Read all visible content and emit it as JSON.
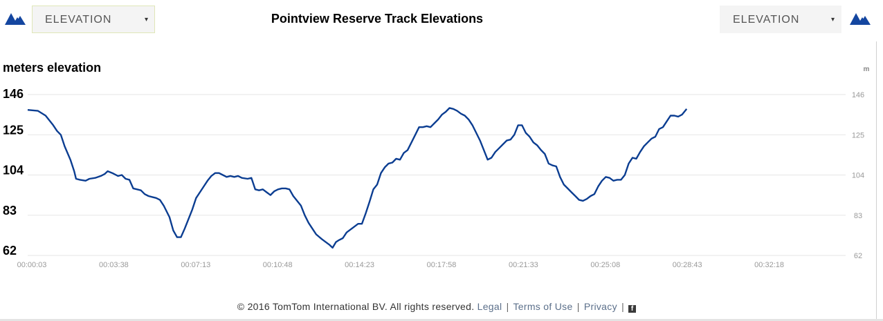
{
  "header": {
    "left_select": {
      "value": "ELEVATION",
      "caret": "▾"
    },
    "right_select": {
      "value": "ELEVATION",
      "caret": "▾"
    },
    "left_icon": "mountain-icon",
    "right_icon": "mountain-icon",
    "icon_color": "#1446a0"
  },
  "footer": {
    "copyright": "© 2016 TomTom International BV. All rights reserved.",
    "links": [
      "Legal",
      "Terms of Use",
      "Privacy"
    ],
    "separator": "|",
    "social_icon": "facebook-icon",
    "social_glyph": "f"
  },
  "chart_data": {
    "type": "line",
    "title": "Pointview Reserve Track Elevations",
    "ylabel": "meters elevation",
    "y2label": "m",
    "ylim": [
      62,
      146
    ],
    "y_ticks": [
      "146",
      "125",
      "104",
      "83",
      "62"
    ],
    "y2_ticks": [
      "146",
      "125",
      "104",
      "83",
      "62"
    ],
    "x_ticks": [
      "00:00:03",
      "00:03:38",
      "00:07:13",
      "00:10:48",
      "00:14:23",
      "00:17:58",
      "00:21:33",
      "00:25:08",
      "00:28:43",
      "00:32:18"
    ],
    "x_range_seconds": [
      3,
      2130
    ],
    "grid": true,
    "line_color": "#0b3d91",
    "series": [
      {
        "values": [
          [
            3,
            138
          ],
          [
            30,
            137.5
          ],
          [
            50,
            135
          ],
          [
            70,
            130
          ],
          [
            80,
            127
          ],
          [
            90,
            125
          ],
          [
            100,
            119
          ],
          [
            115,
            112
          ],
          [
            125,
            106
          ],
          [
            130,
            102
          ],
          [
            140,
            101.5
          ],
          [
            155,
            101
          ],
          [
            165,
            102
          ],
          [
            180,
            102.5
          ],
          [
            195,
            103.5
          ],
          [
            205,
            104.5
          ],
          [
            213,
            106
          ],
          [
            225,
            105
          ],
          [
            240,
            103.5
          ],
          [
            250,
            104
          ],
          [
            260,
            102
          ],
          [
            270,
            101.5
          ],
          [
            280,
            97
          ],
          [
            290,
            96.5
          ],
          [
            300,
            96
          ],
          [
            310,
            94
          ],
          [
            320,
            93
          ],
          [
            330,
            92.5
          ],
          [
            340,
            92
          ],
          [
            350,
            91
          ],
          [
            360,
            88
          ],
          [
            375,
            82
          ],
          [
            385,
            75
          ],
          [
            395,
            71.5
          ],
          [
            405,
            71.5
          ],
          [
            415,
            76
          ],
          [
            425,
            81
          ],
          [
            435,
            86
          ],
          [
            445,
            92
          ],
          [
            455,
            95
          ],
          [
            465,
            98
          ],
          [
            475,
            101
          ],
          [
            485,
            103.5
          ],
          [
            495,
            105
          ],
          [
            505,
            105
          ],
          [
            515,
            104
          ],
          [
            525,
            103
          ],
          [
            535,
            103.5
          ],
          [
            545,
            103
          ],
          [
            555,
            103.5
          ],
          [
            565,
            102.5
          ],
          [
            580,
            102
          ],
          [
            590,
            102.5
          ],
          [
            600,
            96.5
          ],
          [
            610,
            96
          ],
          [
            620,
            96.5
          ],
          [
            630,
            95
          ],
          [
            640,
            93.5
          ],
          [
            650,
            95.5
          ],
          [
            660,
            96.5
          ],
          [
            670,
            97
          ],
          [
            680,
            97
          ],
          [
            690,
            96.5
          ],
          [
            700,
            93
          ],
          [
            710,
            90.5
          ],
          [
            720,
            88
          ],
          [
            730,
            83
          ],
          [
            740,
            79
          ],
          [
            750,
            76
          ],
          [
            760,
            73
          ],
          [
            775,
            70.5
          ],
          [
            785,
            69
          ],
          [
            795,
            67.5
          ],
          [
            803,
            66
          ],
          [
            812,
            69
          ],
          [
            820,
            70
          ],
          [
            830,
            71
          ],
          [
            840,
            74
          ],
          [
            850,
            75.5
          ],
          [
            860,
            77
          ],
          [
            870,
            78.5
          ],
          [
            880,
            78.5
          ],
          [
            890,
            84
          ],
          [
            900,
            90
          ],
          [
            910,
            96.5
          ],
          [
            920,
            99
          ],
          [
            930,
            105
          ],
          [
            940,
            108
          ],
          [
            950,
            110
          ],
          [
            960,
            110.5
          ],
          [
            970,
            112.5
          ],
          [
            980,
            112
          ],
          [
            990,
            115.5
          ],
          [
            1000,
            117
          ],
          [
            1010,
            121
          ],
          [
            1020,
            125
          ],
          [
            1030,
            129
          ],
          [
            1040,
            129
          ],
          [
            1050,
            129.5
          ],
          [
            1060,
            129
          ],
          [
            1070,
            131
          ],
          [
            1080,
            133
          ],
          [
            1090,
            135.5
          ],
          [
            1100,
            137
          ],
          [
            1110,
            139
          ],
          [
            1120,
            138.5
          ],
          [
            1130,
            137.5
          ],
          [
            1140,
            136
          ],
          [
            1150,
            135
          ],
          [
            1160,
            133
          ],
          [
            1170,
            130
          ],
          [
            1180,
            126
          ],
          [
            1190,
            122
          ],
          [
            1200,
            117
          ],
          [
            1210,
            112
          ],
          [
            1220,
            113
          ],
          [
            1230,
            116
          ],
          [
            1240,
            118
          ],
          [
            1250,
            120
          ],
          [
            1260,
            122
          ],
          [
            1270,
            122.5
          ],
          [
            1280,
            125
          ],
          [
            1290,
            130
          ],
          [
            1300,
            130
          ],
          [
            1310,
            126
          ],
          [
            1320,
            124
          ],
          [
            1330,
            121
          ],
          [
            1340,
            119.5
          ],
          [
            1350,
            117
          ],
          [
            1360,
            115
          ],
          [
            1370,
            110
          ],
          [
            1380,
            109
          ],
          [
            1390,
            108.5
          ],
          [
            1400,
            103
          ],
          [
            1410,
            99
          ],
          [
            1420,
            97
          ],
          [
            1430,
            95
          ],
          [
            1440,
            93
          ],
          [
            1450,
            91
          ],
          [
            1460,
            90.5
          ],
          [
            1470,
            91.5
          ],
          [
            1480,
            93
          ],
          [
            1490,
            94
          ],
          [
            1500,
            98
          ],
          [
            1510,
            101
          ],
          [
            1520,
            103
          ],
          [
            1530,
            102.5
          ],
          [
            1540,
            101
          ],
          [
            1550,
            101.5
          ],
          [
            1560,
            101.5
          ],
          [
            1570,
            104
          ],
          [
            1580,
            110
          ],
          [
            1590,
            113
          ],
          [
            1600,
            112.5
          ],
          [
            1610,
            116
          ],
          [
            1620,
            119
          ],
          [
            1630,
            121
          ],
          [
            1640,
            123
          ],
          [
            1650,
            124
          ],
          [
            1660,
            128
          ],
          [
            1670,
            129
          ],
          [
            1680,
            132
          ],
          [
            1690,
            135
          ],
          [
            1700,
            135
          ],
          [
            1710,
            134.5
          ],
          [
            1720,
            135.5
          ],
          [
            1730,
            138
          ],
          [
            1732,
            138.5
          ]
        ]
      }
    ]
  }
}
